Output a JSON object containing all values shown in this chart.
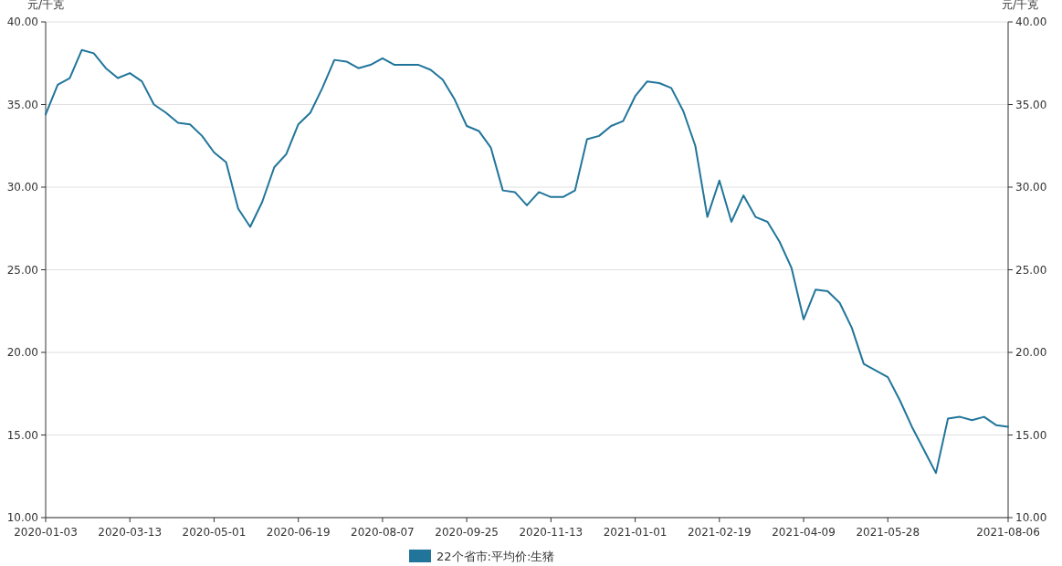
{
  "chart_data": {
    "type": "line",
    "categories": [
      "2020-01-03",
      null,
      null,
      null,
      null,
      null,
      null,
      "2020-03-13",
      null,
      null,
      null,
      null,
      null,
      null,
      "2020-05-01",
      null,
      null,
      null,
      null,
      null,
      null,
      "2020-06-19",
      null,
      null,
      null,
      null,
      null,
      null,
      "2020-08-07",
      null,
      null,
      null,
      null,
      null,
      null,
      "2020-09-25",
      null,
      null,
      null,
      null,
      null,
      null,
      "2020-11-13",
      null,
      null,
      null,
      null,
      null,
      null,
      "2021-01-01",
      null,
      null,
      null,
      null,
      null,
      null,
      "2021-02-19",
      null,
      null,
      null,
      null,
      null,
      null,
      "2021-04-09",
      null,
      null,
      null,
      null,
      null,
      null,
      "2021-05-28",
      null,
      null,
      null,
      null,
      null,
      null,
      null,
      null,
      null,
      "2021-08-06"
    ],
    "series": [
      {
        "name": "22个省市:平均价:生猪",
        "color": "#21759b",
        "values": [
          34.4,
          36.2,
          36.6,
          38.3,
          38.1,
          37.2,
          36.6,
          36.9,
          36.4,
          35.0,
          34.5,
          33.9,
          33.8,
          33.1,
          32.1,
          31.5,
          28.7,
          27.6,
          29.1,
          31.2,
          32.0,
          33.8,
          34.5,
          36.0,
          37.7,
          37.6,
          37.2,
          37.4,
          37.8,
          37.4,
          37.4,
          37.4,
          37.1,
          36.5,
          35.3,
          33.7,
          33.4,
          32.4,
          29.8,
          29.7,
          28.9,
          29.7,
          29.4,
          29.4,
          29.8,
          32.9,
          33.1,
          33.7,
          34.0,
          35.5,
          36.4,
          36.3,
          36.0,
          34.6,
          32.5,
          28.2,
          30.4,
          27.9,
          29.5,
          28.2,
          27.9,
          26.7,
          25.1,
          22.0,
          23.8,
          23.7,
          23.0,
          21.5,
          19.3,
          18.9,
          18.5,
          17.1,
          15.5,
          14.1,
          12.7,
          16.0,
          16.1,
          15.9,
          16.1,
          15.6,
          15.5
        ]
      }
    ],
    "ylabel": "元/千克",
    "y2label": "元/千克",
    "ylim": [
      10,
      40
    ],
    "yticks": [
      {
        "value": 10,
        "label": "10.00"
      },
      {
        "value": 15,
        "label": "15.00"
      },
      {
        "value": 20,
        "label": "20.00"
      },
      {
        "value": 25,
        "label": "25.00"
      },
      {
        "value": 30,
        "label": "30.00"
      },
      {
        "value": 35,
        "label": "35.00"
      },
      {
        "value": 40,
        "label": "40.00"
      }
    ],
    "y2lim": [
      10,
      40
    ],
    "y2ticks": [
      {
        "value": 10,
        "label": "10.00"
      },
      {
        "value": 15,
        "label": "15.00"
      },
      {
        "value": 20,
        "label": "20.00"
      },
      {
        "value": 25,
        "label": "25.00"
      },
      {
        "value": 30,
        "label": "30.00"
      },
      {
        "value": 35,
        "label": "35.00"
      },
      {
        "value": 40,
        "label": "40.00"
      }
    ],
    "grid": "y",
    "legend": "bottom",
    "line_style": "solid"
  }
}
